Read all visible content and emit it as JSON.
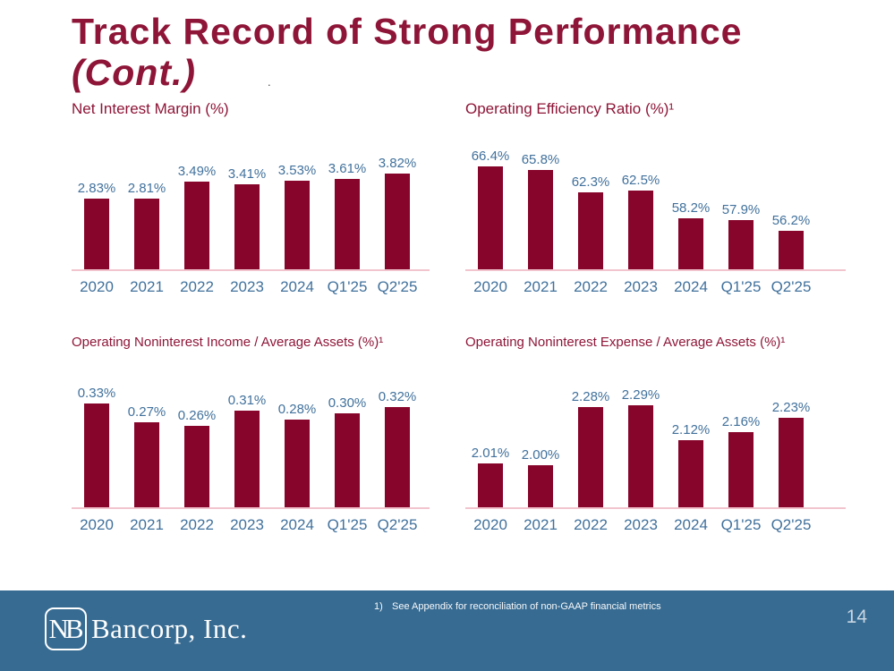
{
  "title": {
    "line1": "Track Record of Strong Performance",
    "line2": "(Cont.)",
    "stray_dot": "."
  },
  "colors": {
    "title_maroon": "#8E1537",
    "bar_maroon": "#87052B",
    "label_blue": "#41719C",
    "axis_pink": "#F2C5CE",
    "footer_blue": "#376B92",
    "page_number_gray": "#C9D6E2"
  },
  "chart_data": [
    {
      "id": "net-interest-margin",
      "type": "bar",
      "title": "Net Interest Margin (%)",
      "categories": [
        "2020",
        "2021",
        "2022",
        "2023",
        "2024",
        "Q1'25",
        "Q2'25"
      ],
      "values": [
        2.83,
        2.81,
        3.49,
        3.41,
        3.53,
        3.61,
        3.82
      ],
      "labels": [
        "2.83%",
        "2.81%",
        "3.49%",
        "3.41%",
        "3.53%",
        "3.61%",
        "3.82%"
      ],
      "ylim": [
        0,
        5
      ],
      "grid": false,
      "legend": "none"
    },
    {
      "id": "operating-efficiency-ratio",
      "type": "bar",
      "title": "Operating Efficiency Ratio (%)¹",
      "categories": [
        "2020",
        "2021",
        "2022",
        "2023",
        "2024",
        "Q1'25",
        "Q2'25"
      ],
      "values": [
        66.4,
        65.8,
        62.3,
        62.5,
        58.2,
        57.9,
        56.2
      ],
      "labels": [
        "66.4%",
        "65.8%",
        "62.3%",
        "62.5%",
        "58.2%",
        "57.9%",
        "56.2%"
      ],
      "ylim": [
        50,
        70
      ],
      "grid": false,
      "legend": "none"
    },
    {
      "id": "operating-noninterest-income",
      "type": "bar",
      "title": "Operating Noninterest Income / Average Assets (%)¹",
      "categories": [
        "2020",
        "2021",
        "2022",
        "2023",
        "2024",
        "Q1'25",
        "Q2'25"
      ],
      "values": [
        0.33,
        0.27,
        0.26,
        0.31,
        0.28,
        0.3,
        0.32
      ],
      "labels": [
        "0.33%",
        "0.27%",
        "0.26%",
        "0.31%",
        "0.28%",
        "0.30%",
        "0.32%"
      ],
      "ylim": [
        0,
        0.4
      ],
      "grid": false,
      "legend": "none"
    },
    {
      "id": "operating-noninterest-expense",
      "type": "bar",
      "title": "Operating Noninterest Expense / Average Assets (%)¹",
      "categories": [
        "2020",
        "2021",
        "2022",
        "2023",
        "2024",
        "Q1'25",
        "Q2'25"
      ],
      "values": [
        2.01,
        2.0,
        2.28,
        2.29,
        2.12,
        2.16,
        2.23
      ],
      "labels": [
        "2.01%",
        "2.00%",
        "2.28%",
        "2.29%",
        "2.12%",
        "2.16%",
        "2.23%"
      ],
      "ylim": [
        1.8,
        2.4
      ],
      "grid": false,
      "legend": "none"
    }
  ],
  "footer": {
    "logo_monogram": "NB",
    "logo_name": "Bancorp, Inc.",
    "footnote_marker": "1)",
    "footnote_text": "See Appendix for reconciliation of non-GAAP financial metrics",
    "page_number": "14"
  }
}
